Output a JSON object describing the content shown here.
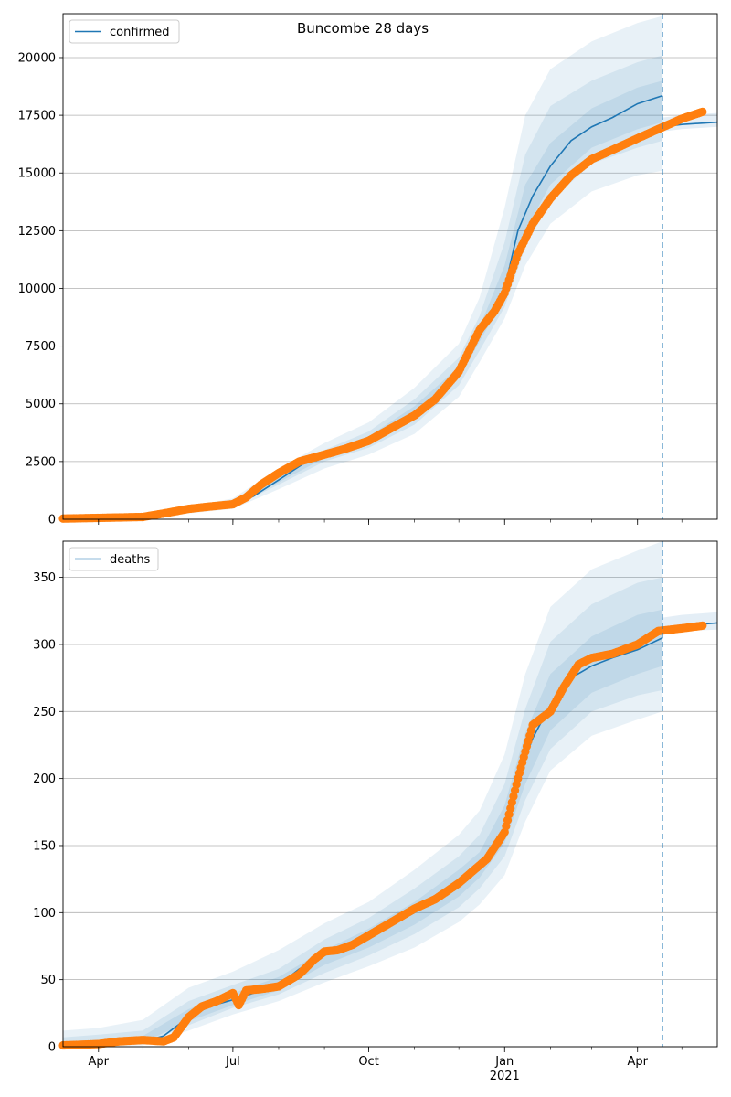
{
  "figure_title": "Buncombe 28 days",
  "chart_data": [
    {
      "type": "line",
      "legend": [
        "confirmed"
      ],
      "legend_position": "top-left",
      "grid": "y-only",
      "ylim": [
        0,
        21900
      ],
      "yticks": [
        0,
        2500,
        5000,
        7500,
        10000,
        12500,
        15000,
        17500,
        20000
      ],
      "ytick_labels": [
        "0",
        "2500",
        "5000",
        "7500",
        "10000",
        "12500",
        "15000",
        "17500",
        "20000"
      ],
      "xlim": [
        "2020-03-08",
        "2021-05-25"
      ],
      "xticks": [
        "2020-04-01",
        "2020-07-01",
        "2020-10-01",
        "2021-01-01",
        "2021-04-01"
      ],
      "xtick_labels": [
        "Apr",
        "Jul",
        "Oct",
        "Jan",
        "Apr"
      ],
      "year_label": "2021",
      "forecast_start": "2021-04-18",
      "colors": {
        "model": "#1f77b4",
        "observed": "#ff7f0e",
        "band": "#1f77b4"
      },
      "series": [
        {
          "name": "confirmed",
          "kind": "model-median",
          "x": [
            "2020-03-08",
            "2020-05-01",
            "2020-06-01",
            "2020-07-01",
            "2020-07-15",
            "2020-08-01",
            "2020-08-20",
            "2020-09-15",
            "2020-10-15",
            "2020-11-15",
            "2020-12-01",
            "2020-12-15",
            "2021-01-01",
            "2021-01-10",
            "2021-01-20",
            "2021-02-01",
            "2021-02-15",
            "2021-03-01",
            "2021-03-15",
            "2021-04-01",
            "2021-04-18"
          ],
          "y": [
            50,
            80,
            350,
            600,
            1000,
            1700,
            2500,
            3000,
            3800,
            5200,
            6400,
            8000,
            10000,
            12500,
            14000,
            15300,
            16400,
            17000,
            17400,
            18000,
            18350
          ]
        },
        {
          "name": "confirmed",
          "kind": "model-projection",
          "x": [
            "2021-04-18",
            "2021-05-01",
            "2021-05-25"
          ],
          "y": [
            17000,
            17100,
            17200
          ]
        },
        {
          "name": "confirmed",
          "kind": "band-outer",
          "x": [
            "2020-03-08",
            "2020-05-01",
            "2020-06-01",
            "2020-07-01",
            "2020-08-01",
            "2020-09-01",
            "2020-10-01",
            "2020-11-01",
            "2020-12-01",
            "2020-12-15",
            "2021-01-01",
            "2021-01-15",
            "2021-02-01",
            "2021-03-01",
            "2021-04-01",
            "2021-04-18"
          ],
          "lower": [
            0,
            40,
            250,
            450,
            1300,
            2200,
            2800,
            3700,
            5300,
            6800,
            8700,
            11000,
            12800,
            14200,
            14900,
            15100
          ],
          "upper": [
            150,
            250,
            550,
            900,
            2200,
            3300,
            4200,
            5700,
            7600,
            9600,
            13500,
            17500,
            19500,
            20700,
            21500,
            21800
          ]
        },
        {
          "name": "confirmed",
          "kind": "band-middle",
          "x": [
            "2020-03-08",
            "2020-05-01",
            "2020-06-01",
            "2020-07-01",
            "2020-08-01",
            "2020-09-01",
            "2020-10-01",
            "2020-11-01",
            "2020-12-01",
            "2020-12-15",
            "2021-01-01",
            "2021-01-15",
            "2021-02-01",
            "2021-03-01",
            "2021-04-01",
            "2021-04-18"
          ],
          "lower": [
            20,
            60,
            300,
            520,
            1500,
            2500,
            3100,
            4100,
            5800,
            7300,
            9200,
            11800,
            13800,
            15400,
            16100,
            16400
          ],
          "upper": [
            100,
            180,
            450,
            750,
            1900,
            3000,
            3800,
            5200,
            7000,
            8800,
            12000,
            15800,
            17900,
            19000,
            19800,
            20100
          ]
        },
        {
          "name": "confirmed",
          "kind": "band-inner",
          "x": [
            "2020-03-08",
            "2020-05-01",
            "2020-06-01",
            "2020-07-01",
            "2020-08-01",
            "2020-09-01",
            "2020-10-01",
            "2020-11-01",
            "2020-12-01",
            "2020-12-15",
            "2021-01-01",
            "2021-01-15",
            "2021-02-01",
            "2021-03-01",
            "2021-04-01",
            "2021-04-18"
          ],
          "lower": [
            35,
            70,
            330,
            570,
            1600,
            2650,
            3250,
            4350,
            6100,
            7700,
            9600,
            12500,
            14500,
            16100,
            16900,
            17200
          ],
          "upper": [
            75,
            130,
            400,
            680,
            1800,
            2850,
            3600,
            4900,
            6600,
            8300,
            11000,
            14500,
            16300,
            17800,
            18700,
            19000
          ]
        },
        {
          "name": "confirmed",
          "kind": "projection-band",
          "x": [
            "2021-04-18",
            "2021-05-01",
            "2021-05-25"
          ],
          "lower": [
            16800,
            16900,
            17000
          ],
          "upper": [
            17400,
            17500,
            17600
          ]
        },
        {
          "name": "observed confirmed",
          "kind": "observed-markers",
          "x": [
            "2020-03-08",
            "2020-04-01",
            "2020-05-01",
            "2020-05-15",
            "2020-06-01",
            "2020-06-15",
            "2020-07-01",
            "2020-07-10",
            "2020-07-20",
            "2020-08-01",
            "2020-08-15",
            "2020-09-01",
            "2020-09-15",
            "2020-10-01",
            "2020-10-15",
            "2020-11-01",
            "2020-11-15",
            "2020-12-01",
            "2020-12-15",
            "2020-12-25",
            "2021-01-01",
            "2021-01-10",
            "2021-01-20",
            "2021-02-01",
            "2021-02-15",
            "2021-03-01",
            "2021-03-15",
            "2021-04-01",
            "2021-04-15",
            "2021-05-01",
            "2021-05-15"
          ],
          "y": [
            30,
            60,
            100,
            250,
            450,
            550,
            650,
            950,
            1500,
            2000,
            2500,
            2800,
            3050,
            3400,
            3900,
            4500,
            5200,
            6400,
            8200,
            9000,
            9800,
            11500,
            12800,
            13900,
            14900,
            15600,
            16000,
            16500,
            16900,
            17350,
            17650
          ]
        }
      ]
    },
    {
      "type": "line",
      "legend": [
        "deaths"
      ],
      "legend_position": "top-left",
      "grid": "y-only",
      "ylim": [
        0,
        377
      ],
      "yticks": [
        0,
        50,
        100,
        150,
        200,
        250,
        300,
        350
      ],
      "ytick_labels": [
        "0",
        "50",
        "100",
        "150",
        "200",
        "250",
        "300",
        "350"
      ],
      "xlim": [
        "2020-03-08",
        "2021-05-25"
      ],
      "xticks": [
        "2020-04-01",
        "2020-07-01",
        "2020-10-01",
        "2021-01-01",
        "2021-04-01"
      ],
      "xtick_labels": [
        "Apr",
        "Jul",
        "Oct",
        "Jan",
        "Apr"
      ],
      "year_label": "2021",
      "forecast_start": "2021-04-18",
      "colors": {
        "model": "#1f77b4",
        "observed": "#ff7f0e",
        "band": "#1f77b4"
      },
      "series": [
        {
          "name": "deaths",
          "kind": "model-median",
          "x": [
            "2020-03-08",
            "2020-04-01",
            "2020-05-01",
            "2020-05-15",
            "2020-06-01",
            "2020-06-15",
            "2020-07-01",
            "2020-07-15",
            "2020-08-01",
            "2020-08-15",
            "2020-09-01",
            "2020-09-15",
            "2020-10-01",
            "2020-10-15",
            "2020-11-01",
            "2020-11-15",
            "2020-12-01",
            "2020-12-15",
            "2020-12-25",
            "2021-01-01",
            "2021-01-10",
            "2021-01-20",
            "2021-02-01",
            "2021-02-15",
            "2021-03-01",
            "2021-03-15",
            "2021-04-01",
            "2021-04-18"
          ],
          "y": [
            1,
            2,
            4,
            8,
            22,
            30,
            35,
            40,
            46,
            58,
            68,
            75,
            82,
            90,
            100,
            110,
            122,
            132,
            145,
            165,
            200,
            230,
            255,
            275,
            284,
            290,
            296,
            305
          ]
        },
        {
          "name": "deaths",
          "kind": "model-projection",
          "x": [
            "2021-04-18",
            "2021-05-01",
            "2021-05-25"
          ],
          "y": [
            312,
            314,
            316
          ]
        },
        {
          "name": "deaths",
          "kind": "band-outer",
          "x": [
            "2020-03-08",
            "2020-04-01",
            "2020-05-01",
            "2020-06-01",
            "2020-07-01",
            "2020-08-01",
            "2020-09-01",
            "2020-10-01",
            "2020-11-01",
            "2020-12-01",
            "2020-12-15",
            "2021-01-01",
            "2021-01-15",
            "2021-02-01",
            "2021-03-01",
            "2021-04-01",
            "2021-04-18"
          ],
          "lower": [
            0,
            0,
            1,
            12,
            24,
            34,
            48,
            60,
            74,
            93,
            106,
            128,
            168,
            206,
            232,
            244,
            250
          ],
          "upper": [
            12,
            14,
            20,
            44,
            56,
            72,
            92,
            108,
            132,
            158,
            176,
            218,
            278,
            328,
            356,
            370,
            377
          ]
        },
        {
          "name": "deaths",
          "kind": "band-middle",
          "x": [
            "2020-03-08",
            "2020-04-01",
            "2020-05-01",
            "2020-06-01",
            "2020-07-01",
            "2020-08-01",
            "2020-09-01",
            "2020-10-01",
            "2020-11-01",
            "2020-12-01",
            "2020-12-15",
            "2021-01-01",
            "2021-01-15",
            "2021-02-01",
            "2021-03-01",
            "2021-04-01",
            "2021-04-18"
          ],
          "lower": [
            0,
            1,
            2,
            16,
            29,
            39,
            55,
            68,
            84,
            104,
            118,
            142,
            184,
            222,
            250,
            262,
            266
          ],
          "upper": [
            7,
            9,
            12,
            34,
            46,
            58,
            80,
            96,
            118,
            142,
            158,
            196,
            252,
            302,
            330,
            346,
            350
          ]
        },
        {
          "name": "deaths",
          "kind": "band-inner",
          "x": [
            "2020-03-08",
            "2020-04-01",
            "2020-05-01",
            "2020-06-01",
            "2020-07-01",
            "2020-08-01",
            "2020-09-01",
            "2020-10-01",
            "2020-11-01",
            "2020-12-01",
            "2020-12-15",
            "2021-01-01",
            "2021-01-15",
            "2021-02-01",
            "2021-03-01",
            "2021-04-01",
            "2021-04-18"
          ],
          "lower": [
            1,
            1,
            3,
            19,
            31,
            42,
            61,
            74,
            91,
            112,
            126,
            152,
            196,
            236,
            264,
            278,
            284
          ],
          "upper": [
            4,
            5,
            8,
            28,
            40,
            52,
            72,
            88,
            108,
            132,
            145,
            180,
            234,
            278,
            306,
            322,
            326
          ]
        },
        {
          "name": "deaths",
          "kind": "projection-band",
          "x": [
            "2021-04-18",
            "2021-05-01",
            "2021-05-25"
          ],
          "lower": [
            309,
            310,
            311
          ],
          "upper": [
            320,
            322,
            324
          ]
        },
        {
          "name": "observed deaths",
          "kind": "observed-markers",
          "x": [
            "2020-03-08",
            "2020-04-01",
            "2020-04-15",
            "2020-05-01",
            "2020-05-15",
            "2020-05-22",
            "2020-06-01",
            "2020-06-10",
            "2020-06-20",
            "2020-07-01",
            "2020-07-05",
            "2020-07-10",
            "2020-07-20",
            "2020-08-01",
            "2020-08-15",
            "2020-08-25",
            "2020-09-01",
            "2020-09-10",
            "2020-09-20",
            "2020-10-01",
            "2020-10-15",
            "2020-11-01",
            "2020-11-15",
            "2020-12-01",
            "2020-12-20",
            "2021-01-01",
            "2021-01-10",
            "2021-01-20",
            "2021-02-01",
            "2021-02-10",
            "2021-02-20",
            "2021-03-01",
            "2021-03-15",
            "2021-04-01",
            "2021-04-15",
            "2021-05-01",
            "2021-05-15"
          ],
          "y": [
            1,
            2,
            4,
            5,
            4,
            7,
            22,
            30,
            34,
            40,
            31,
            42,
            43,
            45,
            54,
            65,
            71,
            72,
            76,
            83,
            92,
            103,
            110,
            122,
            140,
            160,
            200,
            240,
            250,
            268,
            285,
            290,
            293,
            300,
            310,
            312,
            314
          ]
        }
      ]
    }
  ]
}
